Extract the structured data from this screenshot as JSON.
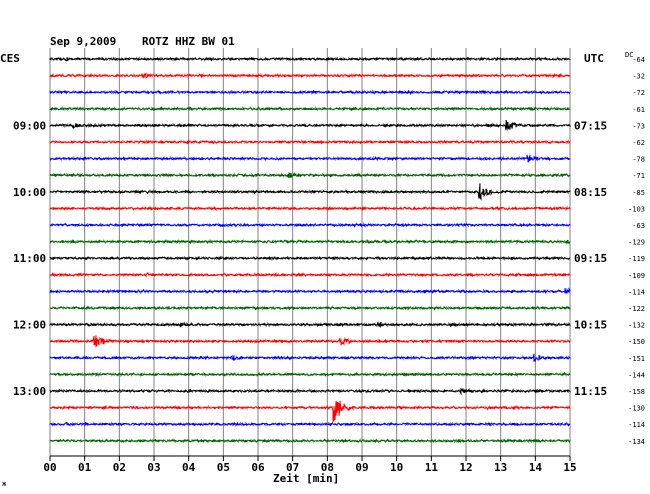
{
  "header": {
    "date": "Sep 9,2009",
    "station": "ROTZ HHZ BW 01",
    "left_label": "CES",
    "right_label": "UTC",
    "dc_label": "DC"
  },
  "footer": {
    "xlabel": "Zeit [min]"
  },
  "colors": {
    "black": "#000000",
    "red": "#ff0000",
    "blue": "#0000ff",
    "green": "#006400",
    "grid": "#808080"
  },
  "chart_data": {
    "type": "line",
    "title": "Sep 9,2009  ROTZ HHZ BW 01",
    "xlabel": "Zeit [min]",
    "xlim": [
      0,
      15
    ],
    "x_ticks": [
      "00",
      "01",
      "02",
      "03",
      "04",
      "05",
      "06",
      "07",
      "08",
      "09",
      "10",
      "11",
      "12",
      "13",
      "14",
      "15"
    ],
    "left_time_labels": [
      {
        "row": 4,
        "text": "09:00"
      },
      {
        "row": 8,
        "text": "10:00"
      },
      {
        "row": 12,
        "text": "11:00"
      },
      {
        "row": 16,
        "text": "12:00"
      },
      {
        "row": 20,
        "text": "13:00"
      }
    ],
    "right_time_labels": [
      {
        "row": 4,
        "text": "07:15"
      },
      {
        "row": 8,
        "text": "08:15"
      },
      {
        "row": 12,
        "text": "09:15"
      },
      {
        "row": 16,
        "text": "10:15"
      },
      {
        "row": 20,
        "text": "11:15"
      }
    ],
    "dc_offsets": [
      -64,
      -32,
      -72,
      -61,
      -73,
      -62,
      -78,
      -71,
      -85,
      -103,
      -63,
      -129,
      -119,
      -109,
      -114,
      -122,
      -132,
      -150,
      -151,
      -144,
      -158,
      -130,
      -114,
      -134
    ],
    "trace_colors": [
      "black",
      "red",
      "blue",
      "green"
    ],
    "events": [
      {
        "row": 0,
        "minute": 0.5,
        "amplitude": 2
      },
      {
        "row": 1,
        "minute": 2.7,
        "amplitude": 3
      },
      {
        "row": 4,
        "minute": 0.7,
        "amplitude": 3
      },
      {
        "row": 4,
        "minute": 13.2,
        "amplitude": 6
      },
      {
        "row": 6,
        "minute": 13.8,
        "amplitude": 4
      },
      {
        "row": 7,
        "minute": 6.9,
        "amplitude": 3
      },
      {
        "row": 8,
        "minute": 12.4,
        "amplitude": 9
      },
      {
        "row": 10,
        "minute": 5.0,
        "amplitude": 2
      },
      {
        "row": 11,
        "minute": 14.9,
        "amplitude": 2
      },
      {
        "row": 13,
        "minute": 2.8,
        "amplitude": 2
      },
      {
        "row": 14,
        "minute": 14.9,
        "amplitude": 4
      },
      {
        "row": 16,
        "minute": 3.8,
        "amplitude": 2
      },
      {
        "row": 16,
        "minute": 9.5,
        "amplitude": 3
      },
      {
        "row": 17,
        "minute": 1.3,
        "amplitude": 8
      },
      {
        "row": 17,
        "minute": 8.4,
        "amplitude": 4
      },
      {
        "row": 18,
        "minute": 5.3,
        "amplitude": 3
      },
      {
        "row": 18,
        "minute": 14.0,
        "amplitude": 4
      },
      {
        "row": 20,
        "minute": 11.9,
        "amplitude": 3
      },
      {
        "row": 21,
        "minute": 8.2,
        "amplitude": 14
      },
      {
        "row": 22,
        "minute": 0.5,
        "amplitude": 2
      }
    ]
  }
}
